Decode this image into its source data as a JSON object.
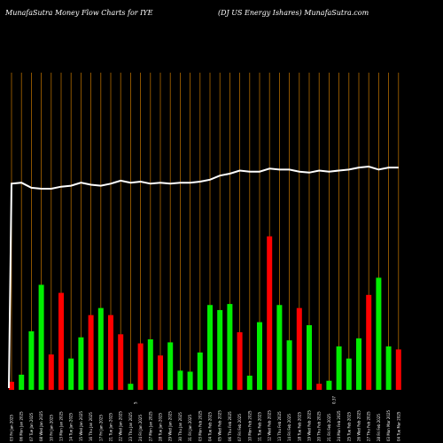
{
  "header": {
    "left": "MunafaSutra  Money Flow  Charts for IYE",
    "right": "(DJ US Energy Ishares) MunafaSutra.com"
  },
  "chart_data": {
    "type": "bar",
    "title": "MunafaSutra  Money Flow  Charts for IYE",
    "subtitle": "(DJ US Energy Ishares) MunafaSutra.com",
    "colors": {
      "up": "#00ee00",
      "down": "#ff0000",
      "grid": "#b06a00",
      "line": "#ffffff",
      "background": "#000000"
    },
    "bars": [
      {
        "date": "03 Fri Jan 2025",
        "value": 8,
        "dir": "down"
      },
      {
        "date": "06 Mon Jan 2025",
        "value": 15,
        "dir": "up"
      },
      {
        "date": "07 Tue Jan 2025",
        "value": 58,
        "dir": "up"
      },
      {
        "date": "08 Wed Jan 2025",
        "value": 104,
        "dir": "up"
      },
      {
        "date": "10 Fri Jan 2025",
        "value": 35,
        "dir": "down"
      },
      {
        "date": "13 Mon Jan 2025",
        "value": 96,
        "dir": "down"
      },
      {
        "date": "14 Tue Jan 2025",
        "value": 31,
        "dir": "up"
      },
      {
        "date": "15 Wed Jan 2025",
        "value": 52,
        "dir": "up"
      },
      {
        "date": "16 Thu Jan 2025",
        "value": 74,
        "dir": "down"
      },
      {
        "date": "17 Fri Jan 2025",
        "value": 81,
        "dir": "up"
      },
      {
        "date": "21 Tue Jan 2025",
        "value": 74,
        "dir": "down"
      },
      {
        "date": "22 Wed Jan 2025",
        "value": 55,
        "dir": "down"
      },
      {
        "date": "23 Thu Jan 2025",
        "value": 6,
        "dir": "up"
      },
      {
        "date": "24 Fri Jan 2025",
        "value": 46,
        "dir": "down"
      },
      {
        "date": "27 Mon Jan 2025",
        "value": 50,
        "dir": "up"
      },
      {
        "date": "28 Tue Jan 2025",
        "value": 34,
        "dir": "down"
      },
      {
        "date": "29 Wed Jan 2025",
        "value": 47,
        "dir": "up"
      },
      {
        "date": "30 Thu Jan 2025",
        "value": 19,
        "dir": "up"
      },
      {
        "date": "31 Fri Jan 2025",
        "value": 18,
        "dir": "up"
      },
      {
        "date": "03 Mon Feb 2025",
        "value": 37,
        "dir": "up"
      },
      {
        "date": "04 Tue Feb 2025",
        "value": 84,
        "dir": "up"
      },
      {
        "date": "05 Wed Feb 2025",
        "value": 79,
        "dir": "up"
      },
      {
        "date": "06 Thu Feb 2025",
        "value": 85,
        "dir": "up"
      },
      {
        "date": "07 Fri Feb 2025",
        "value": 57,
        "dir": "down"
      },
      {
        "date": "10 Mon Feb 2025",
        "value": 14,
        "dir": "up"
      },
      {
        "date": "11 Tue Feb 2025",
        "value": 67,
        "dir": "up"
      },
      {
        "date": "12 Wed Feb 2025",
        "value": 152,
        "dir": "down"
      },
      {
        "date": "13 Thu Feb 2025",
        "value": 84,
        "dir": "up"
      },
      {
        "date": "14 Fri Feb 2025",
        "value": 49,
        "dir": "up"
      },
      {
        "date": "18 Tue Feb 2025",
        "value": 81,
        "dir": "down"
      },
      {
        "date": "19 Wed Feb 2025",
        "value": 64,
        "dir": "up"
      },
      {
        "date": "20 Thu Feb 2025",
        "value": 6,
        "dir": "down"
      },
      {
        "date": "21 Fri Feb 2025",
        "value": 9,
        "dir": "up"
      },
      {
        "date": "24 Mon Feb 2025",
        "value": 43,
        "dir": "up"
      },
      {
        "date": "25 Tue Feb 2025",
        "value": 31,
        "dir": "up"
      },
      {
        "date": "26 Wed Feb 2025",
        "value": 51,
        "dir": "up"
      },
      {
        "date": "27 Thu Feb 2025",
        "value": 94,
        "dir": "down"
      },
      {
        "date": "28 Fri Feb 2025",
        "value": 111,
        "dir": "up"
      },
      {
        "date": "03 Mon Mar 2025",
        "value": 43,
        "dir": "up"
      },
      {
        "date": "04 Tue Mar 2025",
        "value": 40,
        "dir": "down"
      }
    ],
    "price_line": [
      199,
      200,
      195,
      194,
      194,
      196,
      197,
      200,
      198,
      197,
      199,
      202,
      200,
      201,
      199,
      200,
      199,
      200,
      200,
      201,
      203,
      207,
      209,
      212,
      211,
      211,
      214,
      213,
      213,
      211,
      210,
      212,
      211,
      212,
      213,
      215,
      216,
      213,
      215,
      215
    ],
    "markers": [
      {
        "after_index": 12,
        "label": "5"
      },
      {
        "after_index": 32,
        "label": "0.37"
      }
    ]
  }
}
